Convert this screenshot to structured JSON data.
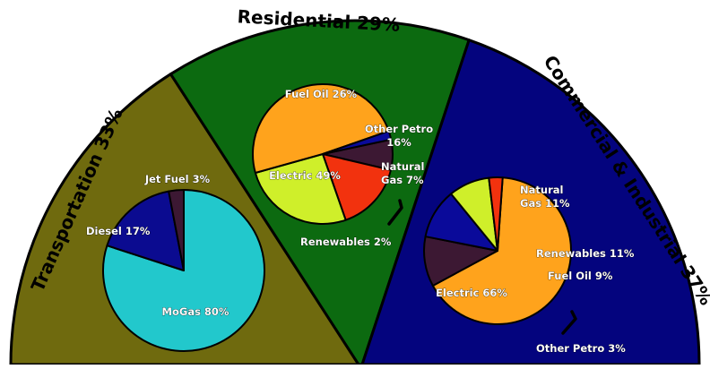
{
  "colors": {
    "transportation_bg": "#6f6a0e",
    "residential_bg": "#0c6a10",
    "commercial_bg": "#04047e",
    "mogas": "#22c8cc",
    "diesel": "#0b0b90",
    "jet_fuel": "#3c1833",
    "electric": "#ffa31c",
    "fuel_oil": "#cfef2a",
    "other_petro": "#f2320e",
    "natural_gas": "#3c1833",
    "renewables_res": "#0a0a9a",
    "renewables_ci": "#0a0a9a",
    "outline": "#000000"
  },
  "chart_data": {
    "type": "pie",
    "sectors": [
      {
        "key": "transportation",
        "label": "Transportation  33%",
        "share": 33,
        "pie": {
          "slices": [
            {
              "key": "mogas",
              "label": "MoGas 80%",
              "value": 80
            },
            {
              "key": "diesel",
              "label": "Diesel 17%",
              "value": 17
            },
            {
              "key": "jet_fuel",
              "label": "Jet Fuel 3%",
              "value": 3
            }
          ]
        }
      },
      {
        "key": "residential",
        "label": "Residential  29%",
        "share": 29,
        "pie": {
          "slices": [
            {
              "key": "natural_gas",
              "label": "Natural Gas 7%",
              "value": 7
            },
            {
              "key": "other_petro",
              "label": "Other Petro 16%",
              "value": 16
            },
            {
              "key": "fuel_oil",
              "label": "Fuel Oil 26%",
              "value": 26
            },
            {
              "key": "electric",
              "label": "Electric 49%",
              "value": 49
            },
            {
              "key": "renewables_res",
              "label": "Renewables 2%",
              "value": 2
            }
          ]
        }
      },
      {
        "key": "commercial",
        "label": "Commercial & Industrial  37%",
        "share": 37,
        "pie": {
          "slices": [
            {
              "key": "electric",
              "label": "Electric 66%",
              "value": 66
            },
            {
              "key": "natural_gas",
              "label": "Natural Gas 11%",
              "value": 11
            },
            {
              "key": "renewables_ci",
              "label": "Renewables 11%",
              "value": 11
            },
            {
              "key": "fuel_oil",
              "label": "Fuel Oil 9%",
              "value": 9
            },
            {
              "key": "other_petro",
              "label": "Other Petro 3%",
              "value": 3
            }
          ]
        }
      }
    ]
  }
}
